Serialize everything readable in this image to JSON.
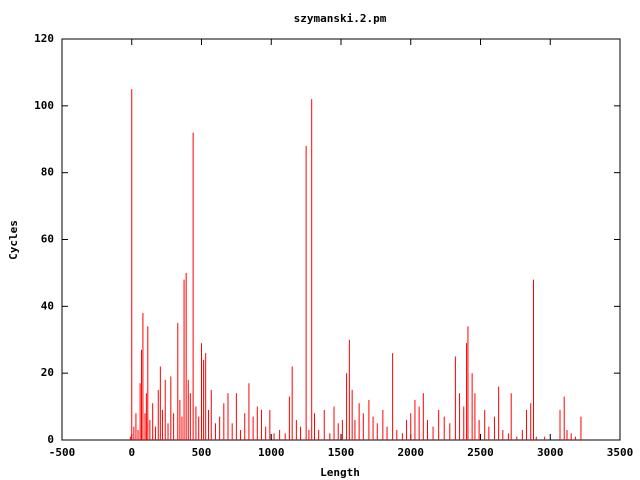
{
  "chart_data": {
    "type": "impulse",
    "title": "szymanski.2.pm",
    "xlabel": "Length",
    "ylabel": "Cycles",
    "color": "#ff0000",
    "x": [
      -10,
      0,
      15,
      30,
      45,
      60,
      70,
      80,
      95,
      105,
      115,
      130,
      150,
      170,
      190,
      205,
      220,
      240,
      260,
      280,
      300,
      330,
      345,
      360,
      375,
      390,
      405,
      420,
      440,
      460,
      480,
      500,
      515,
      530,
      550,
      570,
      600,
      630,
      660,
      690,
      720,
      750,
      780,
      810,
      840,
      870,
      900,
      930,
      960,
      990,
      1020,
      1060,
      1100,
      1130,
      1150,
      1180,
      1210,
      1250,
      1270,
      1290,
      1310,
      1340,
      1380,
      1420,
      1450,
      1480,
      1510,
      1540,
      1560,
      1580,
      1600,
      1630,
      1660,
      1700,
      1730,
      1760,
      1800,
      1830,
      1870,
      1900,
      1940,
      1970,
      2000,
      2030,
      2060,
      2090,
      2120,
      2160,
      2200,
      2240,
      2280,
      2320,
      2350,
      2380,
      2400,
      2410,
      2440,
      2460,
      2490,
      2530,
      2560,
      2600,
      2630,
      2660,
      2700,
      2720,
      2760,
      2800,
      2830,
      2860,
      2880,
      2900,
      2960,
      3070,
      3100,
      3120,
      3150,
      3180,
      3220
    ],
    "values": [
      1,
      105,
      4,
      8,
      3,
      17,
      27,
      38,
      8,
      14,
      34,
      6,
      11,
      4,
      15,
      22,
      9,
      18,
      5,
      19,
      8,
      35,
      12,
      7,
      48,
      50,
      18,
      14,
      92,
      10,
      7,
      29,
      24,
      26,
      9,
      15,
      5,
      7,
      11,
      14,
      5,
      14,
      3,
      8,
      17,
      7,
      10,
      9,
      4,
      9,
      2,
      3,
      2,
      13,
      22,
      6,
      4,
      88,
      3,
      102,
      8,
      3,
      9,
      2,
      10,
      5,
      6,
      20,
      30,
      15,
      6,
      11,
      8,
      12,
      7,
      5,
      9,
      4,
      26,
      3,
      2,
      6,
      8,
      12,
      10,
      14,
      6,
      4,
      9,
      7,
      5,
      25,
      14,
      10,
      29,
      34,
      20,
      14,
      6,
      9,
      4,
      7,
      16,
      3,
      2,
      14,
      1,
      3,
      9,
      11,
      48,
      1,
      1,
      9,
      13,
      3,
      2,
      1,
      7
    ],
    "xlim": [
      -500,
      3500
    ],
    "xticks": [
      -500,
      0,
      500,
      1000,
      1500,
      2000,
      2500,
      3000,
      3500
    ],
    "ylim": [
      0,
      120
    ],
    "yticks": [
      0,
      20,
      40,
      60,
      80,
      100,
      120
    ]
  }
}
